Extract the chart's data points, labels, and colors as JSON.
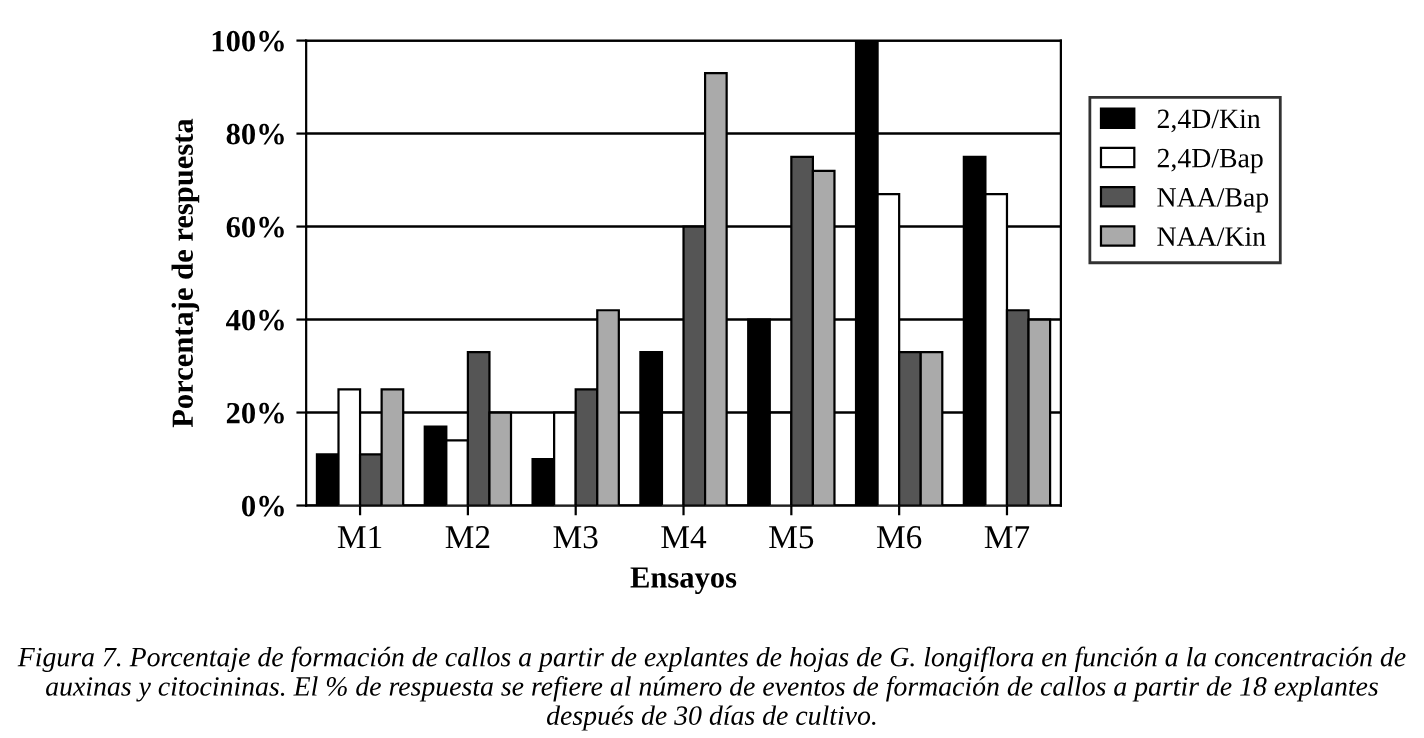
{
  "chart_data": {
    "type": "bar",
    "xlabel": "Ensayos",
    "ylabel": "Porcentaje de respuesta",
    "categories": [
      "M1",
      "M2",
      "M3",
      "M4",
      "M5",
      "M6",
      "M7"
    ],
    "series": [
      {
        "name": "2,4D/Kin",
        "color": "#000000",
        "values": [
          11,
          17,
          10,
          33,
          40,
          100,
          75
        ]
      },
      {
        "name": "2,4D/Bap",
        "color": "#ffffff",
        "values": [
          25,
          14,
          20,
          20,
          20,
          67,
          67
        ]
      },
      {
        "name": "NAA/Bap",
        "color": "#555555",
        "values": [
          11,
          33,
          25,
          60,
          75,
          33,
          42
        ]
      },
      {
        "name": "NAA/Kin",
        "color": "#aaaaaa",
        "values": [
          25,
          20,
          42,
          93,
          72,
          33,
          40
        ]
      }
    ],
    "ylim": [
      0,
      100
    ],
    "yticks": [
      {
        "value": 0,
        "label": "0%"
      },
      {
        "value": 20,
        "label": "20%"
      },
      {
        "value": 40,
        "label": "40%"
      },
      {
        "value": 60,
        "label": "60%"
      },
      {
        "value": 80,
        "label": "80%"
      },
      {
        "value": 100,
        "label": "100%"
      }
    ],
    "grid": "y",
    "legend": "right",
    "annotations": [
      "Figura 7. Porcentaje de formación de callos a partir de explantes de hojas de G. longiflora en función a la concentración de auxinas y citocininas. El % de respuesta se refiere al número de eventos de formación de callos a partir de 18 explantes después de 30 días de cultivo."
    ]
  }
}
